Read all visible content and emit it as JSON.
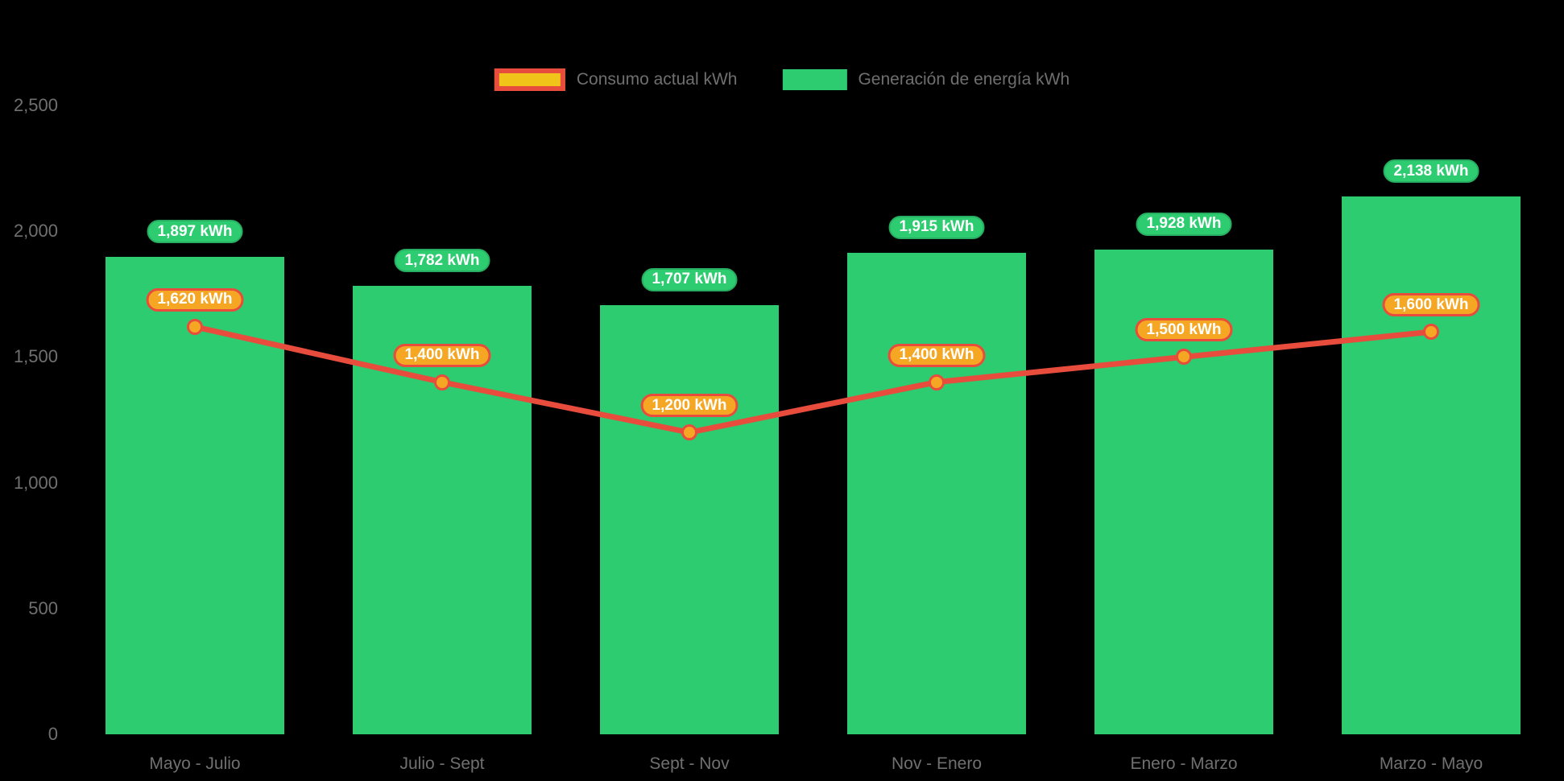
{
  "background": "#000000",
  "colors": {
    "bar_fill": "#2ECC71",
    "bar_badge_border": "#27AE60",
    "line_stroke": "#E74C3C",
    "point_fill": "#F5A623",
    "point_border": "#E74C3C",
    "consumo_badge_fill": "#F5A623",
    "consumo_badge_border": "#E74C3C",
    "legend_swatch_consumo_fill": "#F0C419",
    "legend_swatch_consumo_border": "#E74C3C",
    "legend_swatch_generacion_fill": "#2ECC71",
    "axis_text": "#707070",
    "legend_text": "#6F6F6F",
    "badge_text": "#FFFFFF"
  },
  "legend": {
    "items": [
      {
        "label": "Consumo actual kWh"
      },
      {
        "label": "Generación de energía kWh"
      }
    ]
  },
  "chart_data": {
    "type": "bar",
    "title": "",
    "categories": [
      "Mayo - Julio",
      "Julio - Sept",
      "Sept - Nov",
      "Nov - Enero",
      "Enero - Marzo",
      "Marzo - Mayo"
    ],
    "series": [
      {
        "name": "Consumo actual kWh",
        "type": "line",
        "values": [
          1620,
          1400,
          1200,
          1400,
          1500,
          1600
        ],
        "labels": [
          "1,620 kWh",
          "1,400 kWh",
          "1,200 kWh",
          "1,400 kWh",
          "1,500 kWh",
          "1,600 kWh"
        ],
        "color": "#E74C3C",
        "point_color": "#F5A623"
      },
      {
        "name": "Generación de energía kWh",
        "type": "bar",
        "values": [
          1897,
          1782,
          1707,
          1915,
          1928,
          2138
        ],
        "labels": [
          "1,897 kWh",
          "1,782 kWh",
          "1,707 kWh",
          "1,915 kWh",
          "1,928 kWh",
          "2,138 kWh"
        ],
        "color": "#2ECC71"
      }
    ],
    "ylim": [
      0,
      2500
    ],
    "yticks": [
      {
        "value": 0,
        "label": "0"
      },
      {
        "value": 500,
        "label": "500"
      },
      {
        "value": 1000,
        "label": "1,000"
      },
      {
        "value": 1500,
        "label": "1,500"
      },
      {
        "value": 2000,
        "label": "2,000"
      },
      {
        "value": 2500,
        "label": "2,500"
      }
    ],
    "xlabel": "",
    "ylabel": "",
    "grid": false,
    "legend_position": "top"
  }
}
